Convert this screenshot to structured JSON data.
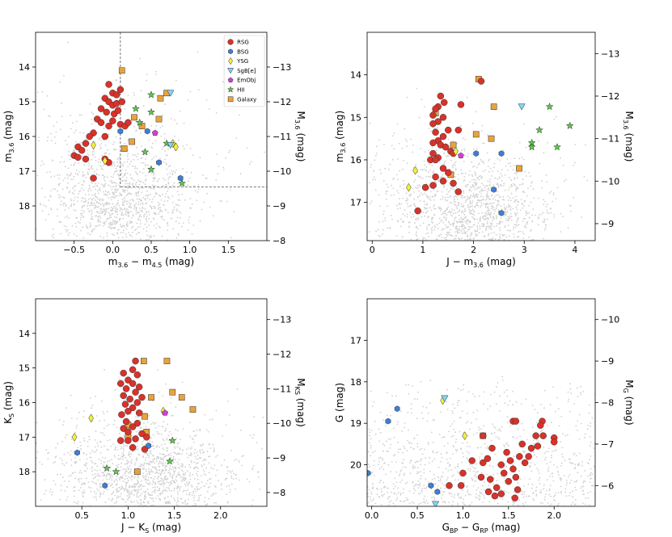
{
  "legend": [
    "RSG",
    "BSG",
    "YSG",
    "SgB[e]",
    "EmObj",
    "HII",
    "Galaxy"
  ],
  "colors": {
    "RSG": "#d9322a",
    "BSG": "#3d7fd6",
    "YSG": "#f5ef3a",
    "SgB[e]": "#7fd3f5",
    "EmObj": "#d43fd8",
    "HII": "#5cc94a",
    "Galaxy": "#e8a33c",
    "background": "#d0d0d0"
  },
  "chart_data": [
    {
      "type": "scatter",
      "panel": "top-left",
      "xlabel": "m3.6 − m4.5 (mag)",
      "ylabel": "m3.6 (mag)",
      "ylabel_right": "M3.6 (mag)",
      "xlim": [
        -1.0,
        2.0
      ],
      "ylim": [
        19.0,
        13.0
      ],
      "y2lim": [
        -8.0,
        -14.0
      ],
      "xticks": [
        -0.5,
        0.0,
        0.5,
        1.0,
        1.5
      ],
      "yticks": [
        14,
        15,
        16,
        17,
        18
      ],
      "y2ticks": [
        -13,
        -12,
        -11,
        -10,
        -9,
        -8
      ],
      "xticklabels": [
        "−0.5",
        "0.0",
        "0.5",
        "1.0",
        "1.5"
      ],
      "yticklabels": [
        "14",
        "15",
        "16",
        "17",
        "18"
      ],
      "y2ticklabels": [
        "−13",
        "−12",
        "−11",
        "−10",
        "−9",
        "−8"
      ],
      "cuts": {
        "x": 0.1,
        "y": 17.45
      },
      "legend": true,
      "series": {
        "RSG": [
          [
            -0.05,
            14.5
          ],
          [
            0.0,
            14.75
          ],
          [
            0.05,
            14.8
          ],
          [
            0.1,
            14.65
          ],
          [
            -0.1,
            14.9
          ],
          [
            -0.05,
            15.0
          ],
          [
            0.0,
            15.1
          ],
          [
            0.05,
            15.05
          ],
          [
            0.12,
            15.0
          ],
          [
            -0.15,
            15.2
          ],
          [
            -0.08,
            15.3
          ],
          [
            0.02,
            15.35
          ],
          [
            0.07,
            15.25
          ],
          [
            -0.2,
            15.5
          ],
          [
            0.0,
            15.55
          ],
          [
            0.1,
            15.65
          ],
          [
            0.16,
            15.7
          ],
          [
            -0.15,
            15.6
          ],
          [
            -0.05,
            15.7
          ],
          [
            -0.25,
            15.9
          ],
          [
            -0.3,
            16.0
          ],
          [
            -0.35,
            16.2
          ],
          [
            -0.45,
            16.3
          ],
          [
            -0.4,
            16.4
          ],
          [
            -0.5,
            16.55
          ],
          [
            -0.45,
            16.6
          ],
          [
            -0.35,
            16.65
          ],
          [
            -0.1,
            16.65
          ],
          [
            -0.05,
            16.75
          ],
          [
            -0.25,
            17.2
          ],
          [
            0.2,
            15.6
          ],
          [
            -0.1,
            16.0
          ]
        ],
        "BSG": [
          [
            0.45,
            15.85
          ],
          [
            0.6,
            16.75
          ],
          [
            0.88,
            17.2
          ],
          [
            0.1,
            15.85
          ]
        ],
        "YSG": [
          [
            -0.25,
            16.25
          ],
          [
            -0.1,
            16.7
          ],
          [
            0.78,
            16.2
          ],
          [
            0.82,
            16.3
          ]
        ],
        "SgB[e]": [
          [
            0.75,
            14.75
          ],
          [
            0.75,
            16.25
          ]
        ],
        "EmObj": [
          [
            0.55,
            15.9
          ]
        ],
        "HII": [
          [
            0.5,
            14.8
          ],
          [
            0.3,
            15.2
          ],
          [
            0.5,
            15.3
          ],
          [
            0.35,
            15.6
          ],
          [
            0.42,
            16.45
          ],
          [
            0.5,
            16.95
          ],
          [
            0.9,
            17.35
          ],
          [
            0.7,
            16.2
          ]
        ],
        "Galaxy": [
          [
            0.12,
            14.1
          ],
          [
            0.28,
            15.45
          ],
          [
            0.38,
            15.7
          ],
          [
            0.62,
            14.9
          ],
          [
            0.7,
            14.75
          ],
          [
            0.6,
            15.5
          ],
          [
            0.15,
            16.35
          ],
          [
            0.25,
            16.15
          ]
        ]
      }
    },
    {
      "type": "scatter",
      "panel": "top-right",
      "xlabel": "J − m3.6 (mag)",
      "ylabel": "m3.6 (mag)",
      "ylabel_right": "M3.6 (mag)",
      "xlim": [
        -0.1,
        4.4
      ],
      "ylim": [
        17.9,
        13.0
      ],
      "y2lim": [
        -8.6,
        -13.5
      ],
      "xticks": [
        0,
        1,
        2,
        3,
        4
      ],
      "yticks": [
        14,
        15,
        16,
        17
      ],
      "y2ticks": [
        -13,
        -12,
        -11,
        -10,
        -9
      ],
      "xticklabels": [
        "0",
        "1",
        "2",
        "3",
        "4"
      ],
      "yticklabels": [
        "14",
        "15",
        "16",
        "17"
      ],
      "y2ticklabels": [
        "−13",
        "−12",
        "−11",
        "−10",
        "−9"
      ],
      "legend": false,
      "series": {
        "RSG": [
          [
            1.35,
            14.5
          ],
          [
            1.3,
            14.75
          ],
          [
            1.42,
            14.65
          ],
          [
            1.25,
            14.8
          ],
          [
            1.75,
            14.7
          ],
          [
            1.2,
            14.95
          ],
          [
            1.4,
            15.0
          ],
          [
            1.3,
            15.1
          ],
          [
            1.2,
            15.15
          ],
          [
            1.5,
            15.3
          ],
          [
            1.25,
            15.35
          ],
          [
            1.4,
            15.45
          ],
          [
            1.3,
            15.55
          ],
          [
            1.7,
            15.3
          ],
          [
            1.2,
            15.6
          ],
          [
            1.35,
            15.65
          ],
          [
            1.45,
            15.7
          ],
          [
            1.55,
            15.8
          ],
          [
            1.2,
            15.85
          ],
          [
            1.3,
            15.95
          ],
          [
            1.15,
            16.0
          ],
          [
            1.4,
            16.2
          ],
          [
            1.5,
            16.3
          ],
          [
            1.25,
            16.4
          ],
          [
            1.4,
            16.5
          ],
          [
            1.6,
            16.55
          ],
          [
            1.05,
            16.65
          ],
          [
            1.2,
            16.6
          ],
          [
            1.7,
            16.75
          ],
          [
            0.9,
            17.2
          ],
          [
            1.25,
            16.0
          ],
          [
            2.15,
            14.15
          ],
          [
            1.6,
            15.85
          ]
        ],
        "BSG": [
          [
            2.05,
            15.85
          ],
          [
            2.55,
            15.85
          ],
          [
            2.4,
            16.7
          ],
          [
            2.55,
            17.25
          ]
        ],
        "YSG": [
          [
            0.85,
            16.25
          ],
          [
            0.72,
            16.65
          ],
          [
            1.65,
            15.8
          ]
        ],
        "SgB[e]": [
          [
            2.95,
            14.75
          ]
        ],
        "EmObj": [
          [
            1.75,
            15.9
          ]
        ],
        "HII": [
          [
            3.5,
            14.75
          ],
          [
            3.3,
            15.3
          ],
          [
            3.9,
            15.2
          ],
          [
            3.15,
            15.6
          ],
          [
            3.15,
            15.7
          ],
          [
            3.65,
            15.7
          ]
        ],
        "Galaxy": [
          [
            2.1,
            14.1
          ],
          [
            1.25,
            14.9
          ],
          [
            2.4,
            14.75
          ],
          [
            2.05,
            15.4
          ],
          [
            2.35,
            15.5
          ],
          [
            2.9,
            16.2
          ],
          [
            1.55,
            16.35
          ],
          [
            1.6,
            15.65
          ]
        ]
      }
    },
    {
      "type": "scatter",
      "panel": "bottom-left",
      "xlabel": "J − KS (mag)",
      "ylabel": "KS (mag)",
      "ylabel_right": "MKS (mag)",
      "xlim": [
        0.0,
        2.5
      ],
      "ylim": [
        19.0,
        13.0
      ],
      "y2lim": [
        -7.6,
        -13.6
      ],
      "xticks": [
        0.5,
        1.0,
        1.5,
        2.0
      ],
      "yticks": [
        14,
        15,
        16,
        17,
        18
      ],
      "y2ticks": [
        -13,
        -12,
        -11,
        -10,
        -9,
        -8
      ],
      "xticklabels": [
        "0.5",
        "1.0",
        "1.5",
        "2.0"
      ],
      "yticklabels": [
        "14",
        "15",
        "16",
        "17",
        "18"
      ],
      "y2ticklabels": [
        "−13",
        "−12",
        "−11",
        "−10",
        "−9",
        "−8"
      ],
      "legend": false,
      "series": {
        "RSG": [
          [
            1.08,
            14.8
          ],
          [
            1.05,
            15.05
          ],
          [
            1.1,
            15.2
          ],
          [
            0.95,
            15.15
          ],
          [
            1.0,
            15.35
          ],
          [
            1.05,
            15.45
          ],
          [
            0.92,
            15.45
          ],
          [
            1.12,
            15.55
          ],
          [
            0.98,
            15.6
          ],
          [
            1.08,
            15.7
          ],
          [
            0.95,
            15.8
          ],
          [
            1.15,
            15.85
          ],
          [
            1.02,
            15.9
          ],
          [
            1.1,
            16.0
          ],
          [
            0.97,
            16.05
          ],
          [
            1.05,
            16.15
          ],
          [
            1.0,
            16.25
          ],
          [
            1.12,
            16.3
          ],
          [
            0.93,
            16.35
          ],
          [
            0.98,
            16.55
          ],
          [
            1.1,
            16.6
          ],
          [
            1.05,
            16.7
          ],
          [
            0.95,
            16.75
          ],
          [
            1.0,
            16.85
          ],
          [
            1.15,
            16.9
          ],
          [
            0.92,
            17.1
          ],
          [
            1.0,
            17.1
          ],
          [
            1.08,
            17.05
          ],
          [
            1.2,
            17.0
          ],
          [
            1.18,
            17.35
          ],
          [
            1.05,
            17.3
          ]
        ],
        "BSG": [
          [
            0.45,
            17.45
          ],
          [
            0.75,
            18.4
          ],
          [
            1.22,
            17.25
          ]
        ],
        "YSG": [
          [
            0.42,
            17.0
          ],
          [
            0.6,
            16.45
          ],
          [
            1.38,
            16.25
          ]
        ],
        "SgB[e]": [],
        "EmObj": [
          [
            1.4,
            16.3
          ]
        ],
        "HII": [
          [
            0.77,
            17.9
          ],
          [
            0.87,
            18.0
          ],
          [
            1.48,
            17.1
          ],
          [
            1.45,
            17.7
          ]
        ],
        "Galaxy": [
          [
            1.17,
            14.8
          ],
          [
            1.42,
            14.8
          ],
          [
            1.48,
            15.7
          ],
          [
            1.58,
            15.85
          ],
          [
            1.7,
            16.2
          ],
          [
            1.25,
            15.85
          ],
          [
            1.18,
            16.4
          ],
          [
            1.0,
            16.65
          ],
          [
            1.2,
            16.85
          ],
          [
            1.0,
            17.0
          ],
          [
            1.1,
            18.0
          ]
        ]
      }
    },
    {
      "type": "scatter",
      "panel": "bottom-right",
      "xlabel": "GBP − GRP (mag)",
      "ylabel": "G (mag)",
      "ylabel_right": "MG (mag)",
      "xlim": [
        -0.05,
        2.45
      ],
      "ylim": [
        21.0,
        16.0
      ],
      "y2lim": [
        -5.5,
        -10.5
      ],
      "xticks": [
        0.0,
        0.5,
        1.0,
        1.5,
        2.0
      ],
      "yticks": [
        17,
        18,
        19,
        20
      ],
      "y2ticks": [
        -10,
        -9,
        -8,
        -7,
        -6
      ],
      "xticklabels": [
        "0.0",
        "0.5",
        "1.0",
        "1.5",
        "2.0"
      ],
      "yticklabels": [
        "17",
        "18",
        "19",
        "20"
      ],
      "y2ticklabels": [
        "−10",
        "−9",
        "−8",
        "−7",
        "−6"
      ],
      "legend": false,
      "series": {
        "RSG": [
          [
            1.55,
            18.95
          ],
          [
            1.58,
            18.95
          ],
          [
            1.87,
            18.95
          ],
          [
            1.85,
            19.05
          ],
          [
            1.88,
            19.3
          ],
          [
            2.0,
            19.35
          ],
          [
            2.0,
            19.45
          ],
          [
            1.8,
            19.3
          ],
          [
            1.22,
            19.3
          ],
          [
            1.65,
            19.5
          ],
          [
            1.82,
            19.55
          ],
          [
            1.75,
            19.6
          ],
          [
            1.32,
            19.6
          ],
          [
            1.48,
            19.7
          ],
          [
            1.62,
            19.8
          ],
          [
            1.72,
            19.8
          ],
          [
            1.52,
            19.9
          ],
          [
            1.68,
            19.95
          ],
          [
            1.1,
            19.9
          ],
          [
            1.22,
            19.95
          ],
          [
            1.27,
            19.85
          ],
          [
            1.42,
            20.0
          ],
          [
            1.55,
            20.1
          ],
          [
            1.0,
            20.2
          ],
          [
            1.2,
            20.3
          ],
          [
            1.45,
            20.2
          ],
          [
            1.58,
            20.3
          ],
          [
            1.3,
            20.35
          ],
          [
            1.5,
            20.4
          ],
          [
            0.98,
            20.5
          ],
          [
            1.6,
            20.6
          ],
          [
            1.37,
            20.55
          ],
          [
            1.28,
            20.65
          ],
          [
            1.35,
            20.75
          ],
          [
            1.42,
            20.7
          ],
          [
            1.57,
            20.8
          ],
          [
            0.85,
            20.5
          ]
        ],
        "BSG": [
          [
            0.28,
            18.65
          ],
          [
            0.18,
            18.95
          ],
          [
            -0.04,
            20.2
          ],
          [
            0.65,
            20.5
          ],
          [
            0.72,
            20.65
          ]
        ],
        "YSG": [
          [
            0.78,
            18.45
          ],
          [
            1.02,
            19.3
          ]
        ],
        "SgB[e]": [
          [
            0.8,
            18.4
          ],
          [
            0.7,
            20.95
          ]
        ],
        "EmObj": [],
        "HII": [],
        "Galaxy": [
          [
            1.22,
            19.3
          ]
        ]
      }
    }
  ]
}
